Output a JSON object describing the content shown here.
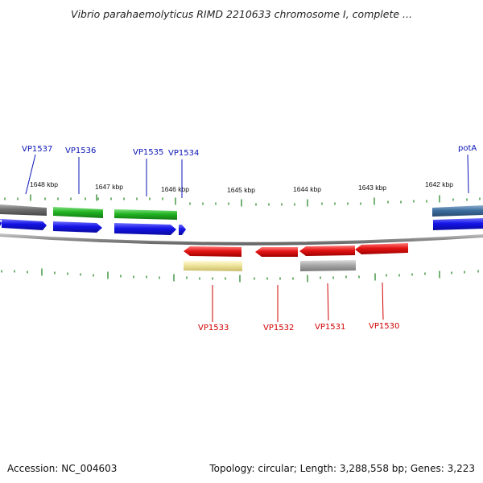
{
  "title": "Vibrio parahaemolyticus RIMD 2210633 chromosome I, complete ...",
  "footer": {
    "accession": "Accession: NC_004603",
    "stats": "Topology: circular; Length: 3,288,558 bp; Genes: 3,223"
  },
  "scale_labels": [
    "1648 kbp",
    "1647 kbp",
    "1646 kbp",
    "1645 kbp",
    "1644 kbp",
    "1643 kbp",
    "1642 kbp"
  ],
  "labels_top": [
    "VP1537",
    "VP1536",
    "VP1535",
    "VP1534",
    "potA"
  ],
  "labels_bottom": [
    "VP1533",
    "VP1532",
    "VP1531",
    "VP1530"
  ],
  "colors": {
    "label_top": "#0a14b4",
    "label_bottom": "#d00000",
    "tick": "#2a8a2a",
    "backbone": "#8a8a8a",
    "gene_blue": "#1414e6",
    "gene_green": "#22b422",
    "gene_red": "#e41414",
    "gene_gray_dark": "#6e6e6e",
    "gene_gray_light": "#a8a8a8",
    "gene_steel": "#3f6f9f",
    "gene_yellow": "#eee39a"
  }
}
